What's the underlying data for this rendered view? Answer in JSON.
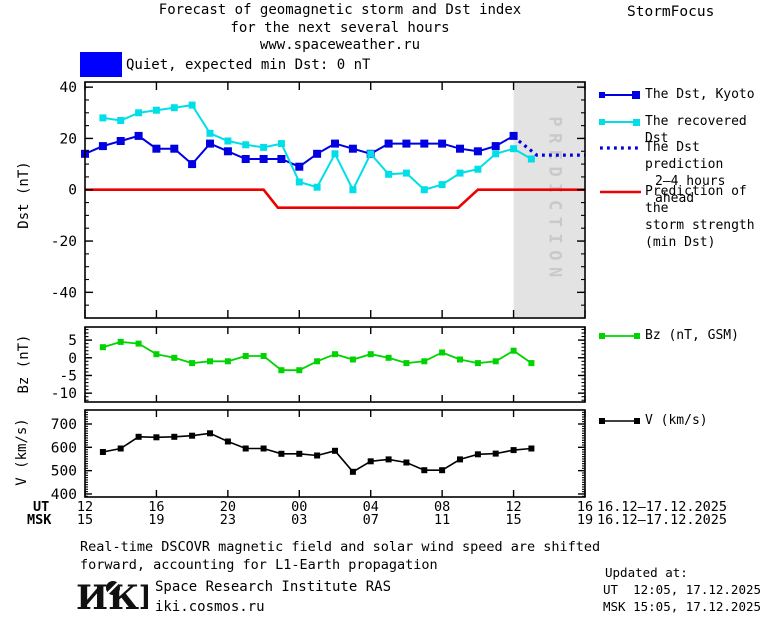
{
  "header": {
    "title_line1": "Forecast of geomagnetic storm and Dst index",
    "title_line2": "for the next several hours",
    "title_line3": "www.spaceweather.ru",
    "brand": "StormFocus"
  },
  "status": {
    "swatch_color": "#0000ff",
    "label": "Quiet, expected min Dst: 0 nT"
  },
  "legend": {
    "dst": "The Dst, Kyoto",
    "recovered": "The recovered Dst",
    "prediction_l1": "The Dst prediction",
    "prediction_l2": "2–4 hours ahead",
    "storm_l1": "Prediction of the",
    "storm_l2": "storm strength",
    "storm_l3": "(min Dst)",
    "bz": "Bz (nT, GSM)",
    "v": "V (km/s)"
  },
  "xaxis": {
    "xlim": [
      0,
      28
    ],
    "hours": [
      0,
      4,
      8,
      12,
      16,
      20,
      24,
      28
    ],
    "ut_label": "UT",
    "msk_label": "MSK",
    "ut_ticks": [
      "12",
      "16",
      "20",
      "00",
      "04",
      "08",
      "12",
      "16"
    ],
    "msk_ticks": [
      "15",
      "19",
      "23",
      "03",
      "07",
      "11",
      "15",
      "19"
    ],
    "ut_daterange": "16.12–17.12.2025",
    "msk_daterange": "16.12–17.12.2025"
  },
  "chart_data": [
    {
      "type": "line",
      "id": "dst",
      "title": "Dst index observed, recovered and predicted",
      "ylabel": "Dst (nT)",
      "xlim": [
        0,
        28
      ],
      "ylim": [
        -50,
        42
      ],
      "yticks": [
        40,
        20,
        0,
        -20,
        -40
      ],
      "grid": false,
      "legend_position": "right",
      "prediction_band": {
        "label": "PREDICTION",
        "start_hour": 24,
        "color": "#e3e3e3",
        "label_color": "#c9c9c9"
      },
      "series": [
        {
          "id": "dst-kyoto",
          "name": "The Dst, Kyoto",
          "color": "#0000e0",
          "marker": "square",
          "marker_size": 8,
          "line_width": 2,
          "x": [
            0,
            1,
            2,
            3,
            4,
            5,
            6,
            7,
            8,
            9,
            10,
            11,
            12,
            13,
            14,
            15,
            16,
            17,
            18,
            19,
            20,
            21,
            22,
            23,
            24
          ],
          "y": [
            14,
            17,
            19,
            21,
            16,
            16,
            10,
            18,
            15,
            12,
            12,
            12,
            9,
            14,
            18,
            16,
            14,
            18,
            18,
            18,
            18,
            16,
            15,
            17,
            21
          ]
        },
        {
          "id": "dst-recovered",
          "name": "The recovered Dst",
          "color": "#00dfe8",
          "marker": "square",
          "marker_size": 7,
          "line_width": 2,
          "x": [
            1,
            2,
            3,
            4,
            5,
            6,
            7,
            8,
            9,
            10,
            11,
            12,
            13,
            14,
            15,
            16,
            17,
            18,
            19,
            20,
            21,
            22,
            23,
            24,
            25
          ],
          "y": [
            28,
            27,
            30,
            31,
            32,
            33,
            22,
            19,
            17.5,
            16.5,
            18,
            3,
            1,
            14,
            0,
            14,
            6,
            6.5,
            0,
            2,
            6.5,
            8,
            14,
            16,
            12
          ]
        },
        {
          "id": "dst-prediction",
          "name": "The Dst prediction 2–4 hours ahead",
          "color": "#0000e0",
          "line_style": "dotted",
          "line_width": 3.2,
          "x": [
            24.3,
            25.3,
            28
          ],
          "y": [
            19,
            13.5,
            13.5
          ]
        },
        {
          "id": "storm-prediction",
          "name": "Prediction of the storm strength (min Dst)",
          "color": "#ee0000",
          "line_width": 2.6,
          "x": [
            0,
            10,
            10.8,
            20.9,
            22,
            28
          ],
          "y": [
            0,
            0,
            -7,
            -7,
            0,
            0
          ]
        }
      ]
    },
    {
      "type": "line",
      "id": "bz",
      "title": "Interplanetary magnetic field Bz",
      "ylabel": "Bz (nT)",
      "xlim": [
        0,
        28
      ],
      "ylim": [
        -12.5,
        8.7
      ],
      "yticks": [
        5,
        0,
        -5,
        -10
      ],
      "grid": false,
      "series": [
        {
          "id": "bz",
          "name": "Bz (nT, GSM)",
          "color": "#00d400",
          "marker": "square",
          "marker_size": 6,
          "line_width": 1.8,
          "x": [
            1,
            2,
            3,
            4,
            5,
            6,
            7,
            8,
            9,
            10,
            11,
            12,
            13,
            14,
            15,
            16,
            17,
            18,
            19,
            20,
            21,
            22,
            23,
            24,
            25
          ],
          "y": [
            3,
            4.5,
            4,
            1,
            0,
            -1.5,
            -1,
            -1,
            0.5,
            0.5,
            -3.5,
            -3.5,
            -1,
            1,
            -0.5,
            1,
            0,
            -1.5,
            -1,
            1.5,
            -0.5,
            -1.5,
            -1,
            2,
            -1.5
          ]
        }
      ]
    },
    {
      "type": "line",
      "id": "v",
      "title": "Solar wind speed",
      "ylabel": "V (km/s)",
      "xlim": [
        0,
        28
      ],
      "ylim": [
        387,
        760
      ],
      "yticks": [
        700,
        600,
        500,
        400
      ],
      "grid": false,
      "series": [
        {
          "id": "v",
          "name": "V (km/s)",
          "color": "#000000",
          "marker": "square",
          "marker_size": 6,
          "line_width": 1.6,
          "x": [
            1,
            2,
            3,
            4,
            5,
            6,
            7,
            8,
            9,
            10,
            11,
            12,
            13,
            14,
            15,
            16,
            17,
            18,
            19,
            20,
            21,
            22,
            23,
            24,
            25
          ],
          "y": [
            580,
            595,
            645,
            643,
            645,
            650,
            660,
            625,
            595,
            595,
            572,
            572,
            565,
            585,
            495,
            540,
            548,
            535,
            502,
            502,
            548,
            570,
            573,
            588,
            595
          ]
        }
      ]
    }
  ],
  "footer": {
    "note_line1": "Real-time DSCOVR magnetic field and solar wind speed are shifted",
    "note_line2": "forward, accounting for L1-Earth propagation",
    "updated_label": "Updated at:",
    "updated_ut": "UT  12:05, 17.12.2025",
    "updated_msk": "MSK 15:05, 17.12.2025",
    "logo": "ИКИ",
    "institute": "Space Research Institute RAS",
    "site": "iki.cosmos.ru"
  }
}
